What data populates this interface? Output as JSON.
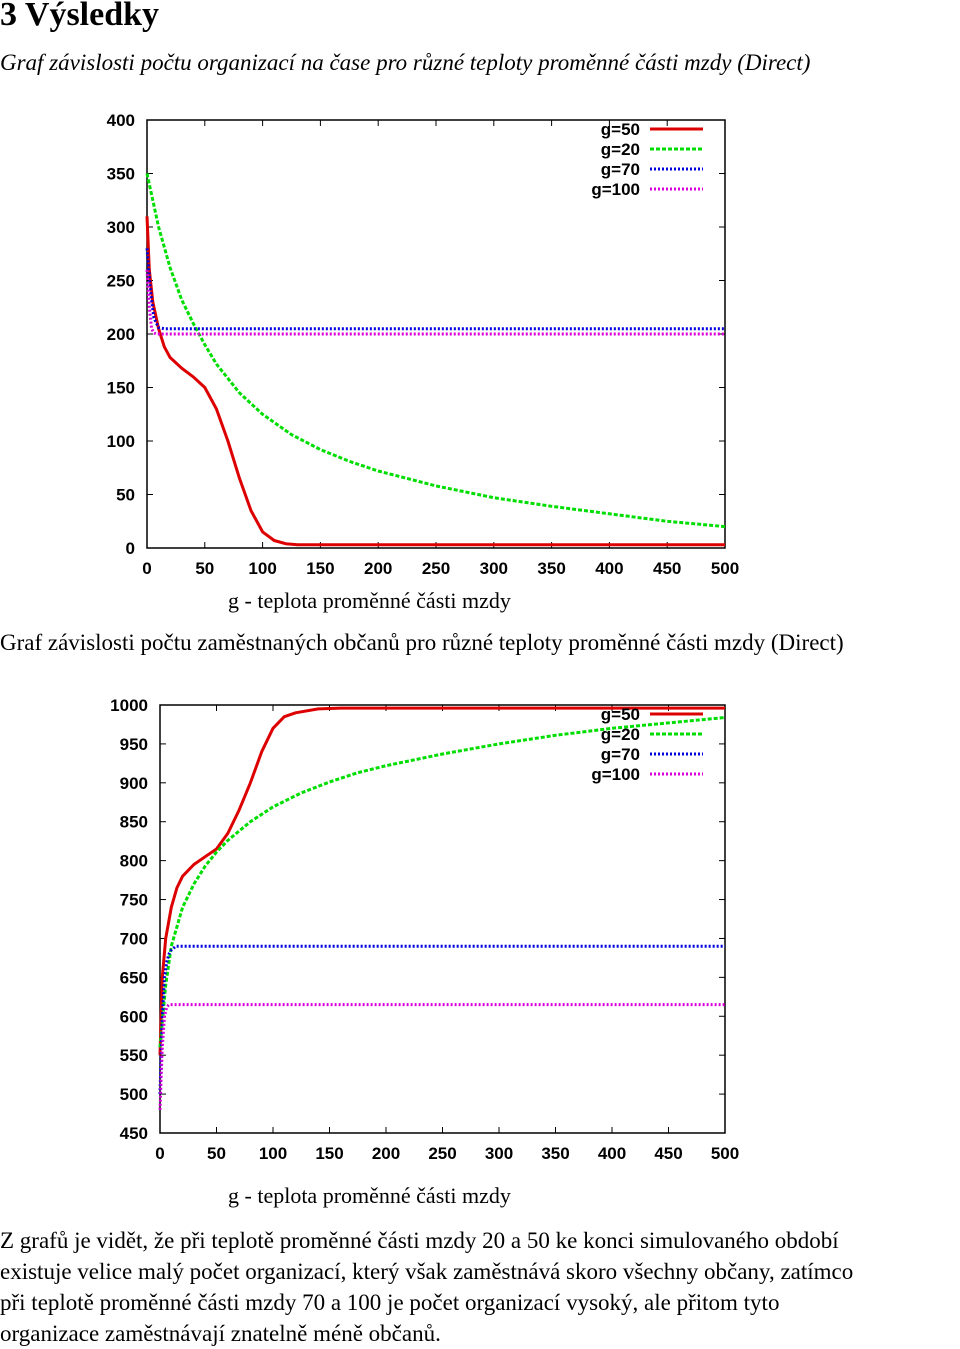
{
  "heading": "3 Výsledky",
  "caption1": "Graf závislosti počtu organizací na čase pro různé teploty proměnné části mzdy (Direct)",
  "caption2": "Graf závislosti počtu zaměstnaných občanů pro různé teploty proměnné části mzdy (Direct)",
  "paragraph_lines": [
    "Z grafů je vidět, že při teplotě proměnné části mzdy 20 a 50 ke konci simulovaného období",
    "existuje velice malý počet organizací, který však zaměstnává skoro všechny občany, zatímco",
    "při teplotě proměnné části mzdy 70 a 100 je počet organizací vysoký, ale přitom tyto",
    "organizace zaměstnávají znatelně méně občanů."
  ],
  "chart_data": [
    {
      "type": "line",
      "title": "",
      "xlabel": "g - teplota proměnné části mzdy",
      "ylabel": "",
      "xlim": [
        0,
        500
      ],
      "ylim": [
        0,
        400
      ],
      "xticks": [
        "0",
        "50",
        "100",
        "150",
        "200",
        "250",
        "300",
        "350",
        "400",
        "450",
        "500"
      ],
      "yticks": [
        "0",
        "50",
        "100",
        "150",
        "200",
        "250",
        "300",
        "350",
        "400"
      ],
      "grid": false,
      "legend": "top-right",
      "series": [
        {
          "name": "g=50",
          "color": "#dd0000",
          "style": "solid",
          "x": [
            0,
            2,
            5,
            10,
            15,
            20,
            30,
            40,
            50,
            60,
            70,
            80,
            90,
            100,
            110,
            120,
            130,
            150,
            200,
            300,
            400,
            500
          ],
          "y": [
            310,
            260,
            230,
            205,
            188,
            178,
            168,
            160,
            150,
            130,
            100,
            65,
            35,
            15,
            7,
            4,
            3,
            3,
            3,
            3,
            3,
            3
          ]
        },
        {
          "name": "g=20",
          "color": "#00dd00",
          "style": "dashed",
          "x": [
            0,
            10,
            20,
            30,
            40,
            50,
            60,
            80,
            100,
            125,
            150,
            175,
            200,
            250,
            300,
            350,
            400,
            450,
            500
          ],
          "y": [
            350,
            300,
            262,
            232,
            210,
            190,
            172,
            145,
            125,
            106,
            92,
            81,
            72,
            58,
            47,
            39,
            32,
            25,
            20
          ]
        },
        {
          "name": "g=70",
          "color": "#0000dd",
          "style": "dotted",
          "x": [
            0,
            3,
            6,
            10,
            15,
            20,
            50,
            100,
            200,
            300,
            400,
            500
          ],
          "y": [
            280,
            240,
            215,
            206,
            205,
            205,
            205,
            205,
            205,
            205,
            205,
            205
          ]
        },
        {
          "name": "g=100",
          "color": "#dd00dd",
          "style": "dotted",
          "x": [
            0,
            2,
            4,
            6,
            8,
            20,
            100,
            200,
            300,
            400,
            500
          ],
          "y": [
            260,
            225,
            205,
            201,
            200,
            200,
            200,
            200,
            200,
            200,
            200
          ]
        }
      ]
    },
    {
      "type": "line",
      "title": "",
      "xlabel": "g - teplota proměnné části mzdy",
      "ylabel": "",
      "xlim": [
        0,
        500
      ],
      "ylim": [
        450,
        1000
      ],
      "xticks": [
        "0",
        "50",
        "100",
        "150",
        "200",
        "250",
        "300",
        "350",
        "400",
        "450",
        "500"
      ],
      "yticks": [
        "450",
        "500",
        "550",
        "600",
        "650",
        "700",
        "750",
        "800",
        "850",
        "900",
        "950",
        "1000"
      ],
      "grid": false,
      "legend": "top-right",
      "series": [
        {
          "name": "g=50",
          "color": "#dd0000",
          "style": "solid",
          "x": [
            0,
            2,
            5,
            10,
            15,
            20,
            30,
            40,
            50,
            60,
            70,
            80,
            90,
            100,
            110,
            120,
            140,
            160,
            200,
            300,
            400,
            500
          ],
          "y": [
            550,
            650,
            700,
            740,
            765,
            780,
            795,
            805,
            815,
            835,
            865,
            900,
            940,
            970,
            985,
            990,
            995,
            996,
            996,
            996,
            996,
            996
          ]
        },
        {
          "name": "g=20",
          "color": "#00dd00",
          "style": "dashed",
          "x": [
            0,
            5,
            10,
            20,
            30,
            40,
            50,
            60,
            80,
            100,
            125,
            150,
            175,
            200,
            250,
            300,
            350,
            400,
            450,
            500
          ],
          "y": [
            560,
            640,
            690,
            740,
            770,
            793,
            811,
            826,
            850,
            869,
            887,
            901,
            913,
            922,
            937,
            950,
            961,
            970,
            977,
            984
          ]
        },
        {
          "name": "g=70",
          "color": "#0000dd",
          "style": "dotted",
          "x": [
            0,
            2,
            4,
            6,
            8,
            10,
            14,
            50,
            100,
            200,
            300,
            400,
            500
          ],
          "y": [
            500,
            600,
            650,
            670,
            680,
            685,
            690,
            690,
            690,
            690,
            690,
            690,
            690
          ]
        },
        {
          "name": "g=100",
          "color": "#dd00dd",
          "style": "dotted",
          "x": [
            0,
            2,
            4,
            6,
            8,
            50,
            100,
            200,
            300,
            400,
            500
          ],
          "y": [
            480,
            560,
            600,
            612,
            615,
            615,
            615,
            615,
            615,
            615,
            615
          ]
        }
      ]
    }
  ]
}
